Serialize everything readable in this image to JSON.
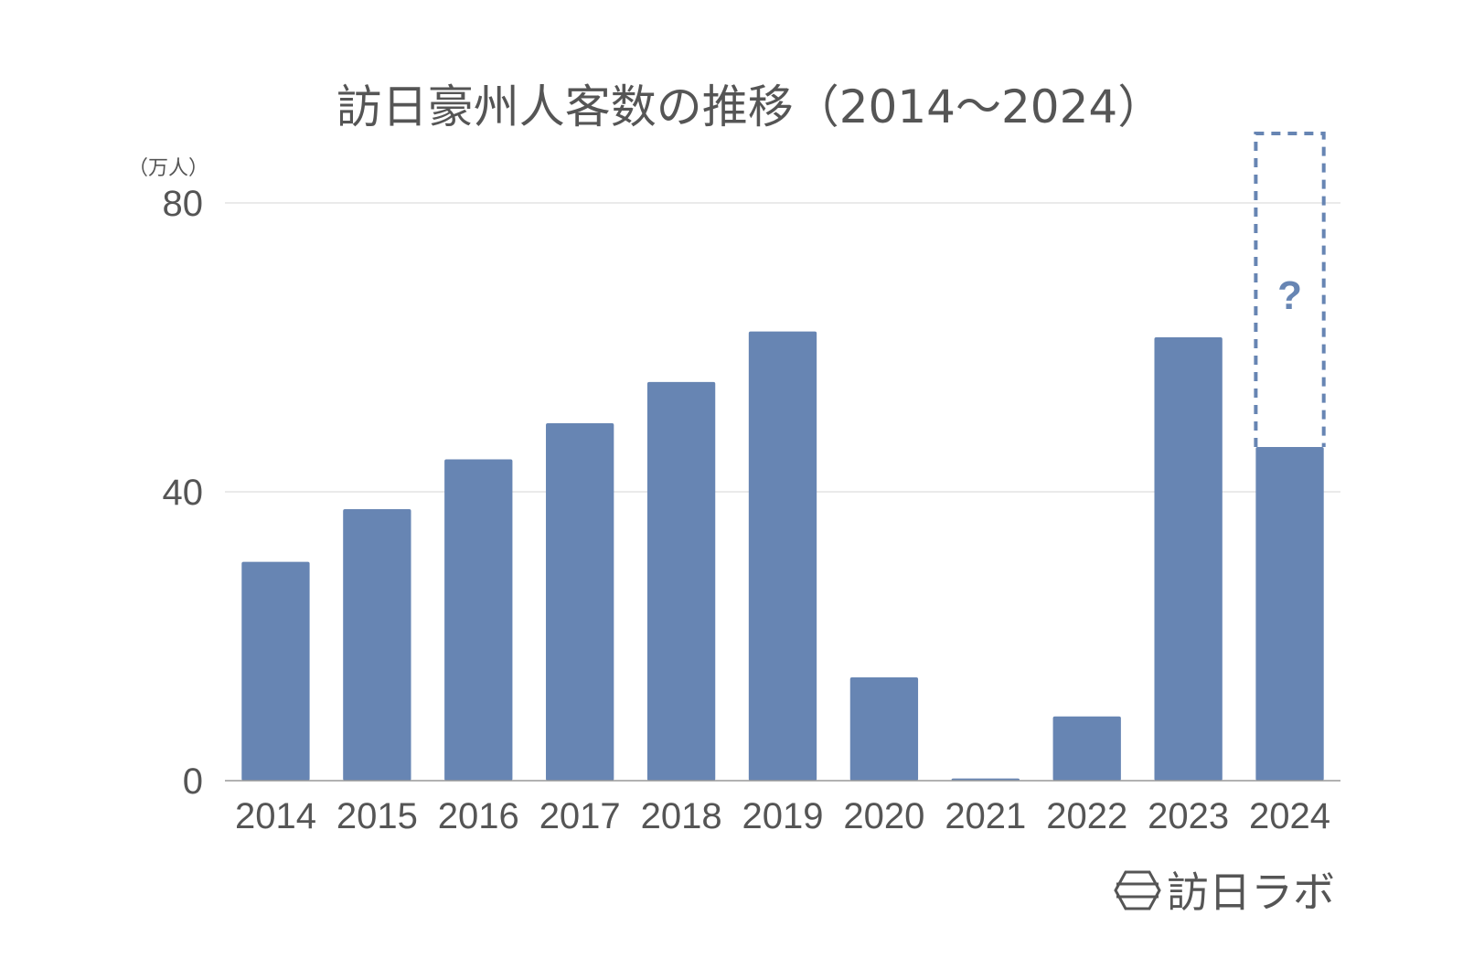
{
  "chart_data": {
    "type": "bar",
    "title": "訪日豪州人客数の推移（2014～2024）",
    "ylabel": "（万人）",
    "xlabel": "",
    "categories": [
      "2014",
      "2015",
      "2016",
      "2017",
      "2018",
      "2019",
      "2020",
      "2021",
      "2022",
      "2023",
      "2024"
    ],
    "values": [
      30.3,
      37.6,
      44.5,
      49.5,
      55.2,
      62.2,
      14.3,
      0.3,
      8.9,
      61.4,
      46.2
    ],
    "ylim": [
      0,
      80
    ],
    "yticks": [
      "0",
      "40",
      "80"
    ],
    "grid": true,
    "bar_color": "#6785b3",
    "pending_category": "2024",
    "pending_marker": "?"
  },
  "logo": {
    "text": "訪日ラボ",
    "icon": "hexagon-logo-icon"
  }
}
